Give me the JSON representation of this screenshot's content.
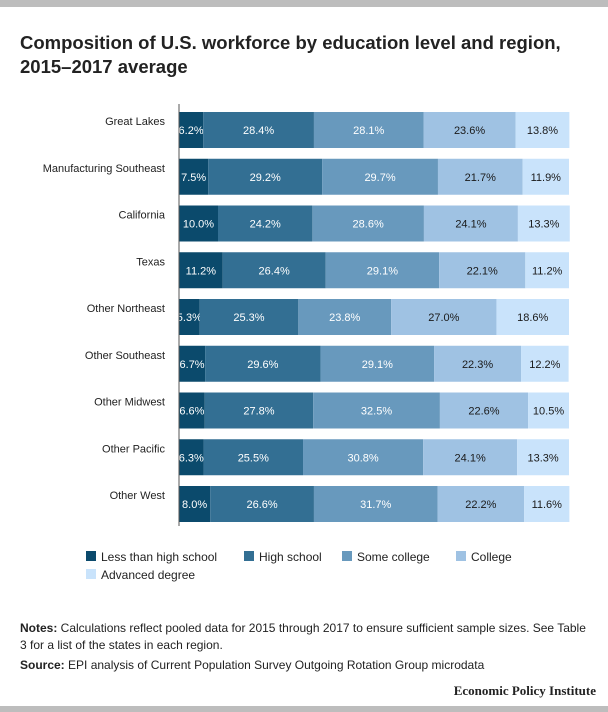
{
  "title": "Composition of U.S. workforce by education level and region, 2015–2017 average",
  "notes": {
    "label": "Notes:",
    "text": " Calculations reflect pooled data for 2015 through 2017 to ensure sufficient sample sizes. See Table 3 for a list of the states in each region."
  },
  "source": {
    "label": "Source:",
    "text": " EPI analysis of Current Population Survey Outgoing Rotation Group microdata"
  },
  "brand": "Economic Policy Institute",
  "colors": {
    "series": [
      "#0b4a6c",
      "#336f93",
      "#6899bd",
      "#9fc2e3",
      "#c9e3fb"
    ],
    "label_text": "#ffffff",
    "label_text_light": "#1a1a1a"
  },
  "chart_data": {
    "type": "bar",
    "orientation": "horizontal",
    "stacked": true,
    "title": "Composition of U.S. workforce by education level and region, 2015–2017 average",
    "xlim": [
      0,
      100
    ],
    "grid": false,
    "legend_position": "bottom",
    "categories": [
      "Great Lakes",
      "Manufacturing Southeast",
      "California",
      "Texas",
      "Other Northeast",
      "Other Southeast",
      "Other Midwest",
      "Other Pacific",
      "Other West"
    ],
    "series": [
      {
        "name": "Less than high school",
        "values": [
          6.2,
          7.5,
          10.0,
          11.2,
          5.3,
          6.7,
          6.6,
          6.3,
          8.0
        ],
        "labels": [
          "6.2%",
          "7.5%",
          "10.0%",
          "11.2%",
          "5.3%",
          "6.7%",
          "6.6%",
          "6.3%",
          "8.0%"
        ]
      },
      {
        "name": "High school",
        "values": [
          28.4,
          29.2,
          24.2,
          26.4,
          25.3,
          29.6,
          27.8,
          25.5,
          26.6
        ],
        "labels": [
          "28.4%",
          "29.2%",
          "24.2%",
          "26.4%",
          "25.3%",
          "29.6%",
          "27.8%",
          "25.5%",
          "26.6%"
        ]
      },
      {
        "name": "Some college",
        "values": [
          28.1,
          29.7,
          28.6,
          29.1,
          23.8,
          29.1,
          32.5,
          30.8,
          31.7
        ],
        "labels": [
          "28.1%",
          "29.7%",
          "28.6%",
          "29.1%",
          "23.8%",
          "29.1%",
          "32.5%",
          "30.8%",
          "31.7%"
        ]
      },
      {
        "name": "College",
        "values": [
          23.6,
          21.7,
          24.1,
          22.1,
          27.0,
          22.3,
          22.6,
          24.1,
          22.2
        ],
        "labels": [
          "23.6%",
          "21.7%",
          "24.1%",
          "22.1%",
          "27.0%",
          "22.3%",
          "22.6%",
          "24.1%",
          "22.2%"
        ]
      },
      {
        "name": "Advanced degree",
        "values": [
          13.8,
          11.9,
          13.3,
          11.2,
          18.6,
          12.2,
          10.5,
          13.3,
          11.6
        ],
        "labels": [
          "13.8%",
          "11.9%",
          "13.3%",
          "11.2%",
          "18.6%",
          "12.2%",
          "10.5%",
          "13.3%",
          "11.6%"
        ]
      }
    ]
  }
}
